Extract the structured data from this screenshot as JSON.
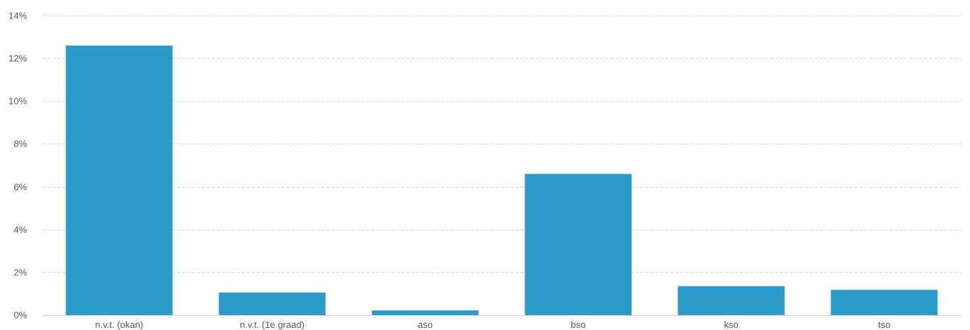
{
  "chart_data": {
    "type": "bar",
    "categories": [
      "n.v.t. (okan)",
      "n.v.t. (1e graad)",
      "aso",
      "bso",
      "kso",
      "tso"
    ],
    "values": [
      12.6,
      1.05,
      0.22,
      6.6,
      1.35,
      1.18
    ],
    "value_unit": "%",
    "title": "",
    "xlabel": "",
    "ylabel": "",
    "ylim": [
      0,
      14
    ],
    "yticks": [
      0,
      2,
      4,
      6,
      8,
      10,
      12,
      14
    ],
    "ytick_labels": [
      "0%",
      "2%",
      "4%",
      "6%",
      "8%",
      "10%",
      "12%",
      "14%"
    ],
    "grid": true,
    "legend": "none",
    "bar_color": "#2a9ac9"
  }
}
